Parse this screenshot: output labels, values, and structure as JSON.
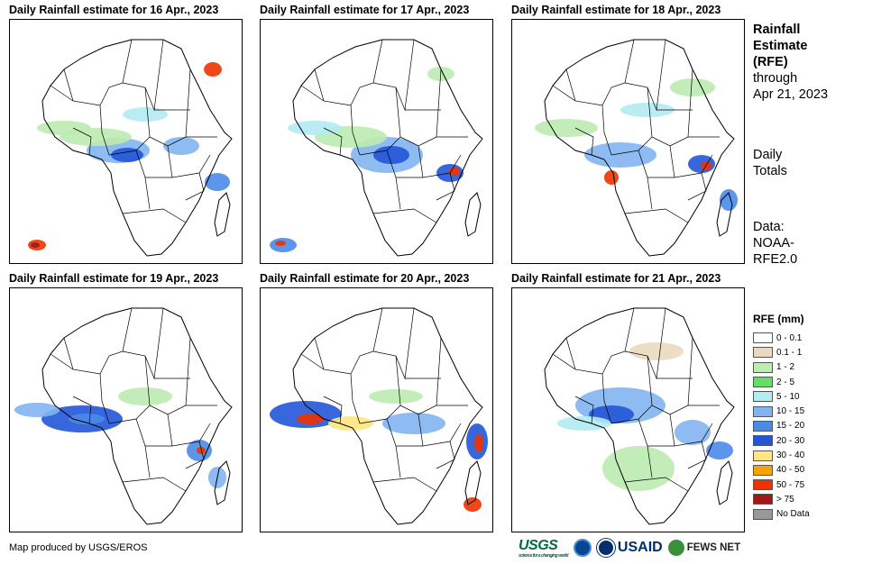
{
  "panels": [
    {
      "title": "Daily Rainfall estimate for 16 Apr., 2023"
    },
    {
      "title": "Daily Rainfall estimate for 17 Apr., 2023"
    },
    {
      "title": "Daily Rainfall estimate for 18 Apr., 2023"
    },
    {
      "title": "Daily Rainfall estimate for 19 Apr., 2023"
    },
    {
      "title": "Daily Rainfall estimate for 20 Apr., 2023"
    },
    {
      "title": "Daily Rainfall estimate for 21 Apr., 2023"
    }
  ],
  "side": {
    "title_lines": [
      "Rainfall",
      "Estimate",
      "(RFE)"
    ],
    "through": "through",
    "date": "Apr 21, 2023",
    "daily_lines": [
      "Daily",
      "Totals"
    ],
    "data_lines": [
      "Data:",
      "NOAA-",
      "RFE2.0"
    ]
  },
  "legend": {
    "title": "RFE (mm)",
    "items": [
      {
        "label": "0 - 0.1",
        "color": "#ffffff"
      },
      {
        "label": "0.1 - 1",
        "color": "#ead9bf"
      },
      {
        "label": "1 - 2",
        "color": "#bdebb0"
      },
      {
        "label": "2 - 5",
        "color": "#66dd66"
      },
      {
        "label": "5 - 10",
        "color": "#b2ebf2"
      },
      {
        "label": "10 - 15",
        "color": "#82b4f0"
      },
      {
        "label": "15 - 20",
        "color": "#4a8be8"
      },
      {
        "label": "20 - 30",
        "color": "#2255d8"
      },
      {
        "label": "30 - 40",
        "color": "#ffe680"
      },
      {
        "label": "40 - 50",
        "color": "#f5a300"
      },
      {
        "label": "50 - 75",
        "color": "#ee3300"
      },
      {
        "label": "> 75",
        "color": "#a01818"
      },
      {
        "label": "No Data",
        "color": "#999999"
      }
    ]
  },
  "footer": {
    "credit": "Map produced by USGS/EROS"
  },
  "logos": {
    "usgs": "USGS",
    "usgs_tagline": "science for a changing world",
    "usaid": "USAID",
    "fews": "FEWS NET"
  }
}
